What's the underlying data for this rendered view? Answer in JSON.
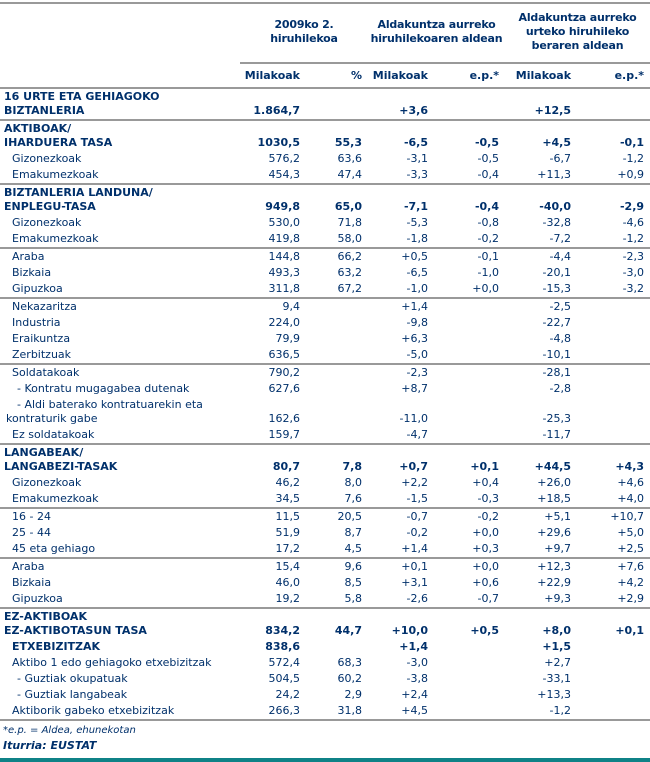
{
  "colors": {
    "text_navy": "#00306b",
    "rule_gray": "#999999",
    "bottom_bar": "#0f8287",
    "bg": "#ffffff"
  },
  "header": {
    "col_groups": [
      {
        "lines": [
          "2009ko 2.",
          "hiruhilekoa"
        ]
      },
      {
        "lines": [
          "Aldakuntza aurreko",
          "hiruhilekoaren aldean"
        ]
      },
      {
        "lines": [
          "Aldakuntza aurreko",
          "urteko hiruhileko",
          "beraren aldean"
        ]
      }
    ],
    "sub_columns": [
      "Milakoak",
      "%",
      "Milakoak",
      "e.p.*",
      "Milakoak",
      "e.p.*"
    ]
  },
  "table": {
    "rows": [
      {
        "style": "section",
        "sep": false,
        "label_lines": [
          "16 URTE ETA GEHIAGOKO",
          "BIZTANLERIA"
        ],
        "values": [
          "1.864,7",
          "",
          "+3,6",
          "",
          "+12,5",
          ""
        ]
      },
      {
        "style": "section",
        "sep": true,
        "label_lines": [
          "AKTIBOAK/",
          "IHARDUERA TASA"
        ],
        "values": [
          "1030,5",
          "55,3",
          "-6,5",
          "-0,5",
          "+4,5",
          "-0,1"
        ]
      },
      {
        "style": "sub",
        "sep": false,
        "label_lines": [
          "Gizonezkoak"
        ],
        "values": [
          "576,2",
          "63,6",
          "-3,1",
          "-0,5",
          "-6,7",
          "-1,2"
        ]
      },
      {
        "style": "sub",
        "sep": false,
        "label_lines": [
          "Emakumezkoak"
        ],
        "values": [
          "454,3",
          "47,4",
          "-3,3",
          "-0,4",
          "+11,3",
          "+0,9"
        ]
      },
      {
        "style": "section",
        "sep": true,
        "label_lines": [
          "BIZTANLERIA LANDUNA/",
          "ENPLEGU-TASA"
        ],
        "values": [
          "949,8",
          "65,0",
          "-7,1",
          "-0,4",
          "-40,0",
          "-2,9"
        ]
      },
      {
        "style": "sub",
        "sep": false,
        "label_lines": [
          "Gizonezkoak"
        ],
        "values": [
          "530,0",
          "71,8",
          "-5,3",
          "-0,8",
          "-32,8",
          "-4,6"
        ]
      },
      {
        "style": "sub",
        "sep": false,
        "label_lines": [
          "Emakumezkoak"
        ],
        "values": [
          "419,8",
          "58,0",
          "-1,8",
          "-0,2",
          "-7,2",
          "-1,2"
        ]
      },
      {
        "style": "sub",
        "sep": true,
        "label_lines": [
          "Araba"
        ],
        "values": [
          "144,8",
          "66,2",
          "+0,5",
          "-0,1",
          "-4,4",
          "-2,3"
        ]
      },
      {
        "style": "sub",
        "sep": false,
        "label_lines": [
          "Bizkaia"
        ],
        "values": [
          "493,3",
          "63,2",
          "-6,5",
          "-1,0",
          "-20,1",
          "-3,0"
        ]
      },
      {
        "style": "sub",
        "sep": false,
        "label_lines": [
          "Gipuzkoa"
        ],
        "values": [
          "311,8",
          "67,2",
          "-1,0",
          "+0,0",
          "-15,3",
          "-3,2"
        ]
      },
      {
        "style": "sub",
        "sep": true,
        "label_lines": [
          "Nekazaritza"
        ],
        "values": [
          "9,4",
          "",
          "+1,4",
          "",
          "-2,5",
          ""
        ]
      },
      {
        "style": "sub",
        "sep": false,
        "label_lines": [
          "Industria"
        ],
        "values": [
          "224,0",
          "",
          "-9,8",
          "",
          "-22,7",
          ""
        ]
      },
      {
        "style": "sub",
        "sep": false,
        "label_lines": [
          "Eraikuntza"
        ],
        "values": [
          "79,9",
          "",
          "+6,3",
          "",
          "-4,8",
          ""
        ]
      },
      {
        "style": "sub",
        "sep": false,
        "label_lines": [
          "Zerbitzuak"
        ],
        "values": [
          "636,5",
          "",
          "-5,0",
          "",
          "-10,1",
          ""
        ]
      },
      {
        "style": "sub",
        "sep": true,
        "label_lines": [
          "Soldatakoak"
        ],
        "values": [
          "790,2",
          "",
          "-2,3",
          "",
          "-28,1",
          ""
        ]
      },
      {
        "style": "dash",
        "sep": false,
        "label_lines": [
          "- Kontratu mugagabea dutenak"
        ],
        "values": [
          "627,6",
          "",
          "+8,7",
          "",
          "-2,8",
          ""
        ]
      },
      {
        "style": "dashwrap",
        "sep": false,
        "label_lines": [
          "- Aldi baterako kontratuarekin eta",
          "kontraturik gabe"
        ],
        "values": [
          "162,6",
          "",
          "-11,0",
          "",
          "-25,3",
          ""
        ]
      },
      {
        "style": "sub",
        "sep": false,
        "label_lines": [
          "Ez soldatakoak"
        ],
        "values": [
          "159,7",
          "",
          "-4,7",
          "",
          "-11,7",
          ""
        ]
      },
      {
        "style": "section",
        "sep": true,
        "label_lines": [
          "LANGABEAK/",
          "LANGABEZI-TASAK"
        ],
        "values": [
          "80,7",
          "7,8",
          "+0,7",
          "+0,1",
          "+44,5",
          "+4,3"
        ]
      },
      {
        "style": "sub",
        "sep": false,
        "label_lines": [
          "Gizonezkoak"
        ],
        "values": [
          "46,2",
          "8,0",
          "+2,2",
          "+0,4",
          "+26,0",
          "+4,6"
        ]
      },
      {
        "style": "sub",
        "sep": false,
        "label_lines": [
          "Emakumezkoak"
        ],
        "values": [
          "34,5",
          "7,6",
          "-1,5",
          "-0,3",
          "+18,5",
          "+4,0"
        ]
      },
      {
        "style": "sub",
        "sep": true,
        "label_lines": [
          "16 - 24"
        ],
        "values": [
          "11,5",
          "20,5",
          "-0,7",
          "-0,2",
          "+5,1",
          "+10,7"
        ]
      },
      {
        "style": "sub",
        "sep": false,
        "label_lines": [
          "25 - 44"
        ],
        "values": [
          "51,9",
          "8,7",
          "-0,2",
          "+0,0",
          "+29,6",
          "+5,0"
        ]
      },
      {
        "style": "sub",
        "sep": false,
        "label_lines": [
          "45 eta gehiago"
        ],
        "values": [
          "17,2",
          "4,5",
          "+1,4",
          "+0,3",
          "+9,7",
          "+2,5"
        ]
      },
      {
        "style": "sub",
        "sep": true,
        "label_lines": [
          "Araba"
        ],
        "values": [
          "15,4",
          "9,6",
          "+0,1",
          "+0,0",
          "+12,3",
          "+7,6"
        ]
      },
      {
        "style": "sub",
        "sep": false,
        "label_lines": [
          "Bizkaia"
        ],
        "values": [
          "46,0",
          "8,5",
          "+3,1",
          "+0,6",
          "+22,9",
          "+4,2"
        ]
      },
      {
        "style": "sub",
        "sep": false,
        "label_lines": [
          "Gipuzkoa"
        ],
        "values": [
          "19,2",
          "5,8",
          "-2,6",
          "-0,7",
          "+9,3",
          "+2,9"
        ]
      },
      {
        "style": "section",
        "sep": true,
        "label_lines": [
          "EZ-AKTIBOAK",
          "EZ-AKTIBOTASUN TASA"
        ],
        "values": [
          "834,2",
          "44,7",
          "+10,0",
          "+0,5",
          "+8,0",
          "+0,1"
        ]
      },
      {
        "style": "boldsub",
        "sep": false,
        "label_lines": [
          "ETXEBIZITZAK"
        ],
        "values": [
          "838,6",
          "",
          "+1,4",
          "",
          "+1,5",
          ""
        ]
      },
      {
        "style": "sub",
        "sep": false,
        "label_lines": [
          "Aktibo 1 edo gehiagoko etxebizitzak"
        ],
        "values": [
          "572,4",
          "68,3",
          "-3,0",
          "",
          "+2,7",
          ""
        ]
      },
      {
        "style": "dash",
        "sep": false,
        "label_lines": [
          "- Guztiak okupatuak"
        ],
        "values": [
          "504,5",
          "60,2",
          "-3,8",
          "",
          "-33,1",
          ""
        ]
      },
      {
        "style": "dash",
        "sep": false,
        "label_lines": [
          "- Guztiak langabeak"
        ],
        "values": [
          "24,2",
          "2,9",
          "+2,4",
          "",
          "+13,3",
          ""
        ]
      },
      {
        "style": "sub",
        "sep": false,
        "label_lines": [
          "Aktiborik gabeko etxebizitzak"
        ],
        "values": [
          "266,3",
          "31,8",
          "+4,5",
          "",
          "-1,2",
          ""
        ]
      }
    ]
  },
  "footnotes": {
    "ep_note": "*e.p. = Aldea, ehunekotan",
    "source": "Iturria: EUSTAT"
  }
}
